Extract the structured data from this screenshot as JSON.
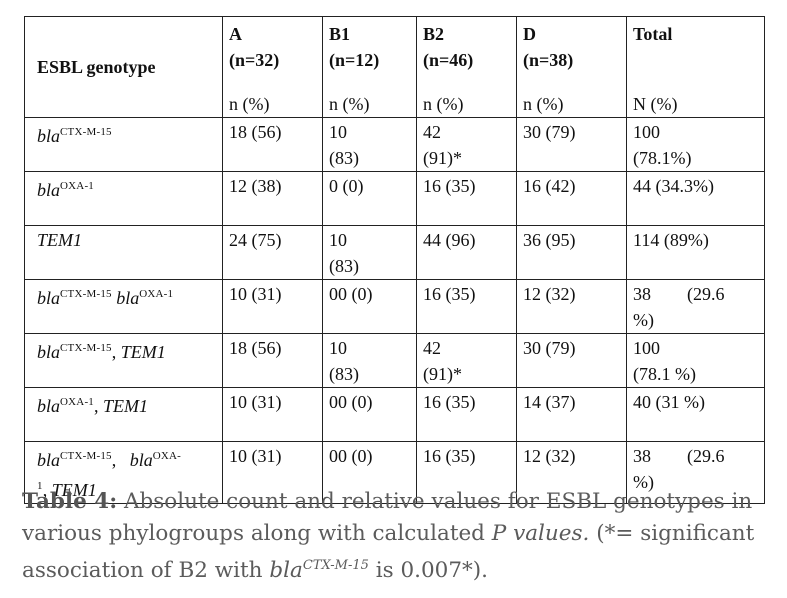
{
  "table": {
    "header": {
      "genotype_label": "ESBL genotype",
      "columns": [
        {
          "name": "A",
          "n": "(n=32)"
        },
        {
          "name": "B1",
          "n": "(n=12)"
        },
        {
          "name": "B2",
          "n": "(n=46)"
        },
        {
          "name": "D",
          "n": "(n=38)"
        },
        {
          "name": "Total",
          "n": ""
        }
      ],
      "units": [
        "n (%)",
        "n (%)",
        "n (%)",
        "n (%)",
        "N (%)"
      ]
    },
    "rows": [
      {
        "geno_parts": [
          {
            "base": "bla",
            "sup": "CTX-M-15",
            "sep": ""
          }
        ],
        "values": [
          "18 (56)",
          "10\n(83)",
          "42\n(91)*",
          "30 (79)",
          "100\n(78.1%)"
        ]
      },
      {
        "geno_parts": [
          {
            "base": "bla",
            "sup": "OXA-1",
            "sep": ""
          }
        ],
        "values": [
          "12 (38)",
          "0 (0)",
          "16 (35)",
          "16 (42)",
          "44 (34.3%)"
        ]
      },
      {
        "geno_parts": [
          {
            "base": "TEM1",
            "sup": "",
            "sep": ""
          }
        ],
        "values": [
          "24 (75)",
          "10\n(83)",
          "44 (96)",
          "36 (95)",
          "114 (89%)"
        ]
      },
      {
        "geno_parts": [
          {
            "base": "bla",
            "sup": "CTX-M-15",
            "sep": " "
          },
          {
            "base": "bla",
            "sup": "OXA-1",
            "sep": ""
          }
        ],
        "values": [
          "10 (31)",
          "00 (0)",
          "16 (35)",
          "12 (32)",
          "38        (29.6\n%)"
        ]
      },
      {
        "geno_parts": [
          {
            "base": "bla",
            "sup": "CTX-M-15",
            "sep": ", "
          },
          {
            "base": "TEM1",
            "sup": "",
            "sep": ""
          }
        ],
        "values": [
          "18 (56)",
          "10\n(83)",
          "42\n(91)*",
          "30 (79)",
          "100\n(78.1 %)"
        ]
      },
      {
        "geno_parts": [
          {
            "base": "bla",
            "sup": "OXA-1",
            "sep": ", "
          },
          {
            "base": "TEM1",
            "sup": "",
            "sep": ""
          }
        ],
        "values": [
          "10 (31)",
          "00 (0)",
          "16 (35)",
          "14 (37)",
          "40 (31 %)"
        ]
      },
      {
        "geno_parts": [
          {
            "base": "bla",
            "sup": "CTX-M-15",
            "sep": ",   "
          },
          {
            "base": "bla",
            "sup": "OXA-1",
            "sep": ", "
          },
          {
            "base": "TEM1",
            "sup": "",
            "sep": ""
          }
        ],
        "values": [
          "10 (31)",
          "00 (0)",
          "16 (35)",
          "12 (32)",
          "38        (29.6\n%)"
        ]
      }
    ]
  },
  "caption": {
    "label": "Table 4:",
    "text_1": " Absolute count and relative values for ESBL genotypes in various phylogroups along with calculated ",
    "italic": "P values.",
    "text_2": " (*= significant association of B2 with ",
    "gene_base": "bla",
    "gene_sup": "CTX-M-15",
    "text_3": " is 0.007*)."
  }
}
